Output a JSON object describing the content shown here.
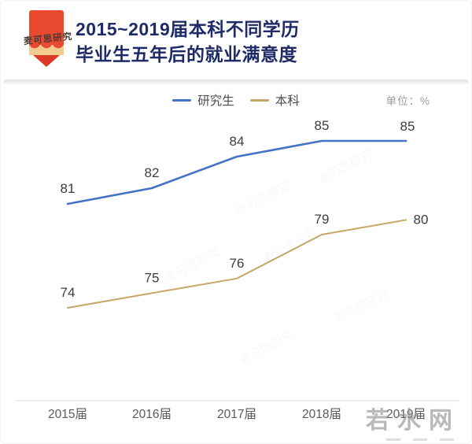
{
  "brand": {
    "logo_text": "麦可思研究"
  },
  "header": {
    "title_line1": "2015~2019届本科不同学历",
    "title_line2": "毕业生五年后的就业满意度"
  },
  "chart_data": {
    "type": "line",
    "title": "2015~2019届本科不同学历毕业生五年后的就业满意度",
    "unit_label": "单位：%",
    "categories": [
      "2015届",
      "2016届",
      "2017届",
      "2018届",
      "2019届"
    ],
    "series": [
      {
        "name": "研究生",
        "color": "#4472c4",
        "values": [
          81,
          82,
          84,
          85,
          85
        ]
      },
      {
        "name": "本科",
        "color": "#c7a768",
        "values": [
          74,
          75,
          76,
          79,
          80
        ]
      }
    ],
    "legend_position": "top-center",
    "grid": false,
    "data_labels": true,
    "ylim": [
      70,
      90
    ]
  },
  "watermarks": {
    "corner_text": "若水网",
    "diagonal_text": "麦可思研究"
  },
  "colors": {
    "title": "#1e2b67",
    "data_label": "#3d3d3d",
    "axis_label": "#5a5a5a",
    "axis_line": "#e2e2e2",
    "pencil_red": "#e8492f",
    "pencil_wood": "#f3cb90"
  }
}
